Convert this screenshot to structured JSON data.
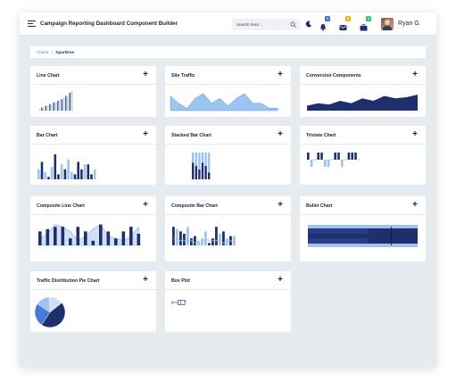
{
  "header": {
    "title": "Campaign Reporting Dashboard Component Builder",
    "search_placeholder": "Search here...",
    "badges": {
      "notifications": "3",
      "messages": "5",
      "tasks": "3"
    },
    "user_name": "Ryan G."
  },
  "breadcrumb": {
    "parent": "Charts",
    "separator": "/",
    "current": "Sparkline"
  },
  "colors": {
    "navy": "#1f2f6e",
    "light_blue": "#9cc4f0",
    "badge_blue": "#3f6fd8",
    "badge_orange": "#f2b01e",
    "badge_green": "#2ec27e"
  },
  "cards": [
    {
      "id": "line-chart",
      "title": "Line Chart"
    },
    {
      "id": "site-traffic",
      "title": "Site Traffic"
    },
    {
      "id": "conversion-components",
      "title": "Conversion Components"
    },
    {
      "id": "bar-chart",
      "title": "Bar Chart"
    },
    {
      "id": "stacked-bar-chart",
      "title": "Stacked Bar Chart"
    },
    {
      "id": "tristate-chart",
      "title": "Tristate Chart"
    },
    {
      "id": "composite-line-chart",
      "title": "Composite Line Chart"
    },
    {
      "id": "composite-bar-chart",
      "title": "Composite Bar Chart"
    },
    {
      "id": "bullet-chart",
      "title": "Bullet Chart"
    },
    {
      "id": "traffic-distribution-pie-chart",
      "title": "Traffic Distribution Pie Chart"
    },
    {
      "id": "box-plot",
      "title": "Box Plot"
    }
  ],
  "add_label": "+",
  "sparklines": {
    "line_chart": [
      1,
      2,
      2,
      3,
      3,
      4,
      4,
      5,
      5,
      6,
      7,
      7,
      8,
      9,
      9,
      11,
      12
    ],
    "site_traffic": [
      6,
      3,
      1,
      5,
      7,
      3,
      5,
      2,
      5,
      7,
      3,
      3,
      1,
      1
    ],
    "conversion_components": [
      2,
      3,
      2.5,
      4,
      3,
      5,
      4,
      6,
      5,
      5.5,
      6.5
    ],
    "bar_chart": [
      [
        4,
        "light"
      ],
      [
        7,
        "navy"
      ],
      [
        3,
        "light"
      ],
      [
        1,
        "navy"
      ],
      [
        5,
        "light"
      ],
      [
        10,
        "navy"
      ],
      [
        2,
        "navy"
      ],
      [
        6,
        "light"
      ],
      [
        4,
        "navy"
      ],
      [
        8,
        "light"
      ],
      [
        3,
        "light"
      ],
      [
        2,
        "navy"
      ],
      [
        7,
        "navy"
      ],
      [
        4,
        "navy"
      ],
      [
        6,
        "light"
      ],
      [
        6,
        "navy"
      ],
      [
        2,
        "navy"
      ],
      [
        4,
        "light"
      ]
    ],
    "stacked_bar_chart": [
      [
        5,
        3
      ],
      [
        4,
        4
      ],
      [
        3,
        5
      ],
      [
        5,
        3
      ],
      [
        4,
        4
      ],
      [
        2,
        6
      ]
    ],
    "tristate_chart": [
      1,
      -1,
      0,
      1,
      1,
      -1,
      -1,
      0,
      1,
      1,
      -1,
      0,
      1,
      1,
      1,
      0
    ],
    "composite_line_chart": {
      "bars": [
        6,
        7,
        8,
        8,
        3,
        8,
        6,
        2,
        9,
        6,
        3,
        6,
        8,
        5
      ],
      "line": [
        3,
        5,
        9,
        8,
        6,
        2,
        4,
        7,
        9,
        4,
        3,
        2,
        4,
        8
      ]
    },
    "composite_bar_chart": {
      "bars": [
        [
          8,
          "navy"
        ],
        [
          7,
          "light"
        ],
        [
          6,
          "navy"
        ],
        [
          5,
          "navy"
        ],
        [
          8,
          "light"
        ],
        [
          3,
          "navy"
        ],
        [
          4,
          "navy"
        ],
        [
          2,
          "light"
        ],
        [
          3,
          "light"
        ],
        [
          6,
          "light"
        ],
        [
          1,
          "navy"
        ],
        [
          3,
          "navy"
        ],
        [
          8,
          "navy"
        ],
        [
          5,
          "light"
        ],
        [
          6,
          "navy"
        ],
        [
          3,
          "light"
        ],
        [
          4,
          "navy"
        ],
        [
          4,
          "light"
        ]
      ],
      "line": [
        3,
        3,
        2,
        2,
        2,
        2,
        1,
        1,
        1,
        3,
        2,
        2,
        2,
        2,
        1,
        2,
        2,
        1
      ]
    },
    "bullet_chart": {
      "target": 0.76,
      "value": 0.7,
      "ranges": [
        1,
        0.9,
        0.55
      ]
    },
    "pie_chart": [
      {
        "value": 45,
        "color": "navy"
      },
      {
        "value": 25,
        "color": "mid"
      },
      {
        "value": 15,
        "color": "light"
      },
      {
        "value": 15,
        "color": "pale"
      }
    ],
    "box_plot": {
      "min": 0,
      "q1": 0.45,
      "median": 0.7,
      "q3": 1,
      "max": 1
    }
  }
}
